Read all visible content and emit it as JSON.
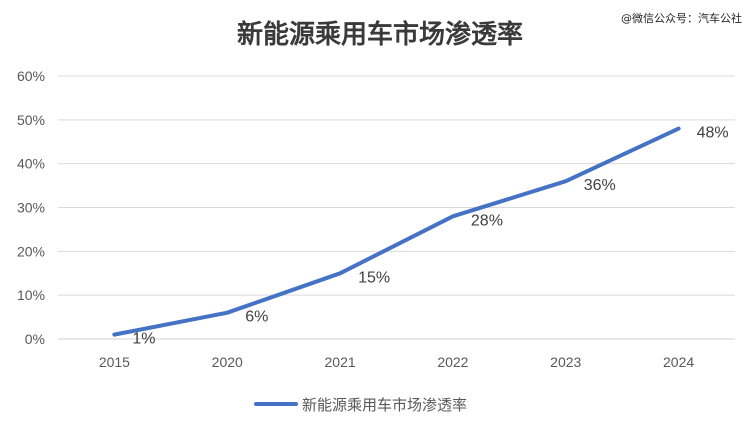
{
  "watermark": "@微信公众号：汽车公社",
  "chart_data": {
    "type": "line",
    "title": "新能源乘用车市场渗透率",
    "categories": [
      "2015",
      "2020",
      "2021",
      "2022",
      "2023",
      "2024"
    ],
    "series": [
      {
        "name": "新能源乘用车市场渗透率",
        "values": [
          1,
          6,
          15,
          28,
          36,
          48
        ],
        "labels": [
          "1%",
          "6%",
          "15%",
          "28%",
          "36%",
          "48%"
        ],
        "color": "#4472c4"
      }
    ],
    "y_ticks": [
      "0%",
      "10%",
      "20%",
      "30%",
      "40%",
      "50%",
      "60%"
    ],
    "ylim": [
      0,
      60
    ],
    "grid": true,
    "legend_position": "bottom"
  }
}
